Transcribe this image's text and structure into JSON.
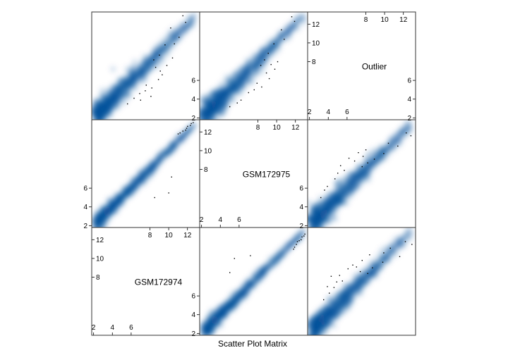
{
  "chart_data": {
    "type": "scatter",
    "subtype": "smooth-density scatterplot matrix",
    "xlabel": "Scatter Plot Matrix",
    "variables": [
      "GSM172974",
      "GSM172975",
      "Outlier"
    ],
    "variable_ranges": {
      "GSM172974": [
        1.8,
        13.3
      ],
      "GSM172975": [
        1.8,
        13.3
      ],
      "Outlier": [
        1.8,
        13.3
      ]
    },
    "diagonal_ticks": {
      "GSM172974": {
        "low": [
          2,
          4,
          6
        ],
        "high": [
          8,
          10,
          12
        ]
      },
      "GSM172975": {
        "low": [
          2,
          4,
          6
        ],
        "high": [
          8,
          10,
          12
        ]
      },
      "Outlier": {
        "low": [
          2,
          4,
          6
        ],
        "high": [
          8,
          10,
          12
        ]
      }
    },
    "offdiag_axis_ticks": [
      {
        "panel": "GSM172975 vs GSM172974",
        "axis": "y",
        "ticks": [
          2,
          4,
          6
        ]
      },
      {
        "panel": "Outlier vs GSM172975",
        "axis": "y",
        "ticks": [
          2,
          4,
          6
        ]
      }
    ],
    "density_color": "#08519c",
    "point_color": "#000000",
    "panels": [
      {
        "x": "GSM172974",
        "y": "GSM172975",
        "band": 0.35,
        "offset": 0,
        "outliers": [
          [
            12.4,
            12.9
          ],
          [
            12.0,
            12.6
          ],
          [
            11.5,
            12.1
          ],
          [
            11.0,
            11.8
          ],
          [
            10.3,
            7.2
          ],
          [
            10.0,
            5.5
          ],
          [
            12.3,
            12.7
          ],
          [
            11.8,
            12.2
          ],
          [
            8.5,
            5.0
          ],
          [
            11.2,
            11.9
          ],
          [
            12.6,
            13.0
          ],
          [
            11.9,
            12.4
          ]
        ]
      },
      {
        "x": "GSM172974",
        "y": "Outlier",
        "band": 0.6,
        "offset": 0,
        "outliers": [
          [
            11.5,
            12.9
          ],
          [
            11.8,
            12.2
          ],
          [
            10.2,
            11.6
          ],
          [
            9.6,
            9.8
          ],
          [
            9.0,
            8.7
          ],
          [
            8.4,
            8.2
          ],
          [
            8.9,
            6.1
          ],
          [
            9.3,
            6.6
          ],
          [
            8.2,
            5.2
          ],
          [
            7.5,
            4.9
          ],
          [
            6.9,
            4.6
          ],
          [
            7.6,
            5.5
          ],
          [
            9.8,
            7.6
          ],
          [
            10.4,
            8.4
          ],
          [
            8.1,
            4.3
          ],
          [
            5.6,
            3.5
          ],
          [
            6.3,
            4.1
          ],
          [
            7.0,
            3.9
          ],
          [
            10.6,
            9.9
          ],
          [
            9.1,
            7.0
          ],
          [
            8.6,
            7.4
          ],
          [
            11.1,
            10.6
          ]
        ]
      },
      {
        "x": "GSM172975",
        "y": "Outlier",
        "band": 0.65,
        "offset": 0,
        "outliers": [
          [
            11.6,
            12.8
          ],
          [
            11.9,
            12.3
          ],
          [
            10.5,
            11.4
          ],
          [
            9.7,
            9.9
          ],
          [
            9.1,
            8.9
          ],
          [
            8.7,
            8.2
          ],
          [
            8.3,
            7.6
          ],
          [
            9.2,
            6.2
          ],
          [
            8.4,
            5.3
          ],
          [
            7.6,
            5.0
          ],
          [
            7.0,
            4.7
          ],
          [
            6.2,
            3.9
          ],
          [
            5.8,
            3.6
          ],
          [
            9.8,
            7.2
          ],
          [
            10.1,
            8.0
          ],
          [
            8.9,
            6.8
          ],
          [
            7.9,
            5.7
          ],
          [
            10.8,
            10.4
          ],
          [
            9.4,
            7.7
          ],
          [
            5.0,
            3.2
          ]
        ]
      },
      {
        "x": "GSM172975",
        "y": "GSM172974",
        "band": 0.35,
        "offset": 0,
        "outliers": [
          [
            12.9,
            12.4
          ],
          [
            12.6,
            12.0
          ],
          [
            12.1,
            11.5
          ],
          [
            11.8,
            11.0
          ],
          [
            7.2,
            10.3
          ],
          [
            5.5,
            10.0
          ],
          [
            12.7,
            12.3
          ],
          [
            12.2,
            11.8
          ],
          [
            5.0,
            8.5
          ],
          [
            11.9,
            11.2
          ],
          [
            13.0,
            12.6
          ],
          [
            12.4,
            11.9
          ]
        ]
      },
      {
        "x": "Outlier",
        "y": "GSM172974",
        "band": 0.6,
        "offset": 0,
        "outliers": [
          [
            12.9,
            11.5
          ],
          [
            12.2,
            11.8
          ],
          [
            11.6,
            10.2
          ],
          [
            9.8,
            9.6
          ],
          [
            8.7,
            9.0
          ],
          [
            8.2,
            8.4
          ],
          [
            6.1,
            8.9
          ],
          [
            6.6,
            9.3
          ],
          [
            5.2,
            8.2
          ],
          [
            4.9,
            7.5
          ],
          [
            4.6,
            6.9
          ],
          [
            5.5,
            7.6
          ],
          [
            7.6,
            9.8
          ],
          [
            8.4,
            10.4
          ],
          [
            4.3,
            8.1
          ],
          [
            3.5,
            5.6
          ],
          [
            4.1,
            6.3
          ],
          [
            3.9,
            7.0
          ],
          [
            9.9,
            10.6
          ],
          [
            7.0,
            9.1
          ],
          [
            7.4,
            8.6
          ],
          [
            10.6,
            11.1
          ]
        ]
      },
      {
        "x": "Outlier",
        "y": "GSM172975",
        "band": 0.65,
        "offset": 0,
        "outliers": [
          [
            12.8,
            11.6
          ],
          [
            12.3,
            11.9
          ],
          [
            11.4,
            10.5
          ],
          [
            9.9,
            9.7
          ],
          [
            8.9,
            9.1
          ],
          [
            8.2,
            8.7
          ],
          [
            7.6,
            8.3
          ],
          [
            6.2,
            9.2
          ],
          [
            5.3,
            8.4
          ],
          [
            5.0,
            7.6
          ],
          [
            4.7,
            7.0
          ],
          [
            3.9,
            6.2
          ],
          [
            3.6,
            5.8
          ],
          [
            7.2,
            9.8
          ],
          [
            8.0,
            10.1
          ],
          [
            6.8,
            8.9
          ],
          [
            5.7,
            7.9
          ],
          [
            10.4,
            10.8
          ],
          [
            7.7,
            9.4
          ],
          [
            3.2,
            5.0
          ]
        ]
      }
    ]
  }
}
